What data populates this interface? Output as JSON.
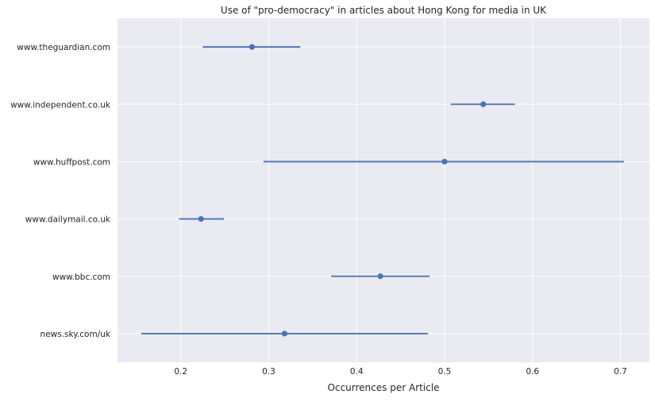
{
  "chart_data": {
    "type": "errorbar-dot",
    "title": "Use of \"pro-democracy\" in articles about Hong Kong for media in UK",
    "xlabel": "Occurrences per Article",
    "ylabel": "",
    "xlim": [
      0.128,
      0.733
    ],
    "xticks": [
      0.2,
      0.3,
      0.4,
      0.5,
      0.6,
      0.7
    ],
    "xtick_labels": [
      "0.2",
      "0.3",
      "0.4",
      "0.5",
      "0.6",
      "0.7"
    ],
    "grid": true,
    "color": "#4c72b0",
    "background": "#eaeaf2",
    "categories": [
      "www.theguardian.com",
      "www.independent.co.uk",
      "www.huffpost.com",
      "www.dailymail.co.uk",
      "www.bbc.com",
      "news.sky.com/uk"
    ],
    "points": [
      {
        "name": "www.theguardian.com",
        "value": 0.281,
        "low": 0.225,
        "high": 0.336
      },
      {
        "name": "www.independent.co.uk",
        "value": 0.544,
        "low": 0.507,
        "high": 0.58
      },
      {
        "name": "www.huffpost.com",
        "value": 0.5,
        "low": 0.294,
        "high": 0.704
      },
      {
        "name": "www.dailymail.co.uk",
        "value": 0.223,
        "low": 0.198,
        "high": 0.249
      },
      {
        "name": "www.bbc.com",
        "value": 0.427,
        "low": 0.371,
        "high": 0.483
      },
      {
        "name": "news.sky.com/uk",
        "value": 0.318,
        "low": 0.155,
        "high": 0.481
      }
    ]
  }
}
